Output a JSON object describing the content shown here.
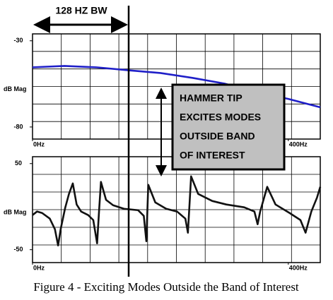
{
  "bandwidth_label": "128 HZ BW",
  "annotation": [
    "HAMMER TIP",
    "EXCITES MODES",
    "OUTSIDE BAND",
    "OF INTEREST"
  ],
  "caption": "Figure 4 - Exciting Modes Outside the Band of Interest",
  "chart_data": [
    {
      "type": "line",
      "ylabel": "dB Mag",
      "xlim": [
        0,
        450
      ],
      "ylim": [
        -87,
        -26
      ],
      "xticks": [
        {
          "value": 0,
          "label": "0Hz"
        },
        {
          "value": 400,
          "label": "400Hz"
        }
      ],
      "yticks": [
        -30,
        -80
      ],
      "x": [
        0,
        50,
        100,
        150,
        200,
        250,
        300,
        350,
        400,
        450
      ],
      "series": [
        {
          "color": "#1f1fc8",
          "values": [
            -45.4,
            -44.6,
            -45.4,
            -47.1,
            -48.7,
            -51.5,
            -54.8,
            -59.7,
            -63.7,
            -68.6
          ]
        }
      ]
    },
    {
      "type": "line",
      "ylabel": "dB Mag",
      "xlim": [
        0,
        450
      ],
      "ylim": [
        -65,
        58
      ],
      "xticks": [
        {
          "value": 0,
          "label": "0Hz"
        },
        {
          "value": 400,
          "label": "400Hz"
        }
      ],
      "yticks": [
        50,
        -50
      ],
      "x": [
        0,
        7,
        15,
        27,
        35,
        40,
        44,
        51,
        57,
        63,
        69,
        76,
        87,
        95,
        101,
        104,
        107,
        115,
        126,
        143,
        165,
        174,
        178,
        181,
        192,
        209,
        226,
        239,
        243,
        248,
        259,
        281,
        303,
        331,
        347,
        352,
        356,
        367,
        380,
        402,
        419,
        427,
        436,
        445,
        450
      ],
      "series": [
        {
          "color": "#111111",
          "values": [
            -9.8,
            -5.7,
            -7.4,
            -13.9,
            -26.2,
            -45.1,
            -26.2,
            -1.6,
            14.8,
            27,
            2.5,
            -5.7,
            -9.8,
            -15.6,
            -42.6,
            -5.7,
            28.7,
            7.9,
            1.6,
            -2.5,
            -4.1,
            -10.7,
            -40.2,
            25.4,
            4.9,
            -2.5,
            -5.7,
            -13.9,
            -30.3,
            35.2,
            14.8,
            6.6,
            2.5,
            -0.8,
            -5.7,
            -20.5,
            -5.7,
            23,
            2.5,
            -7.4,
            -15.6,
            -30.3,
            -5.7,
            10.7,
            23
          ]
        }
      ]
    }
  ]
}
